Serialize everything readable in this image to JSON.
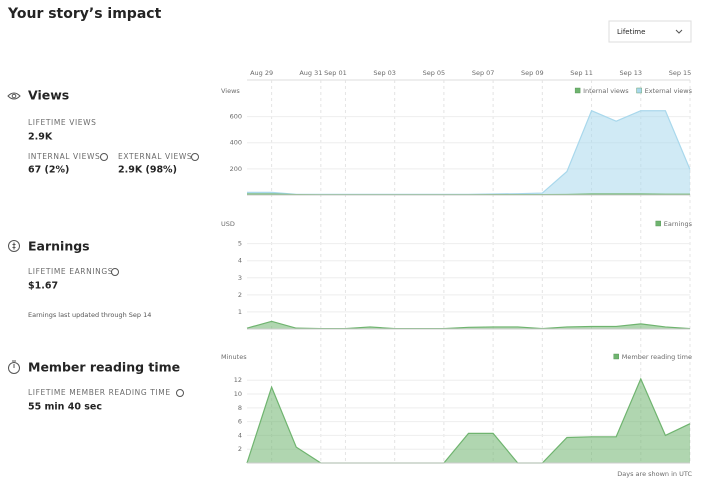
{
  "header": {
    "title": "Your story’s impact",
    "dropdown": "Lifetime"
  },
  "stats": {
    "views": {
      "title": "Views",
      "lifetime_label": "LIFETIME VIEWS",
      "lifetime_value": "2.9K",
      "internal_label": "INTERNAL VIEWS",
      "internal_value": "67 (2%)",
      "external_label": "EXTERNAL VIEWS",
      "external_value": "2.9K (98%)"
    },
    "earnings": {
      "title": "Earnings",
      "lifetime_label": "LIFETIME EARNINGS",
      "lifetime_value": "$1.67",
      "note": "Earnings last updated through Sep 14"
    },
    "reading": {
      "title": "Member reading time",
      "lifetime_label": "LIFETIME MEMBER READING TIME",
      "lifetime_value": "55 min 40 sec"
    }
  },
  "chart_data": [
    {
      "type": "area",
      "y_label": "Views",
      "legend": "top-right",
      "grid": true,
      "categories": [
        null,
        "Aug 29",
        null,
        "Aug 31",
        "Sep 01",
        null,
        "Sep 03",
        null,
        "Sep 05",
        null,
        "Sep 07",
        null,
        "Sep 09",
        null,
        "Sep 11",
        null,
        "Sep 13",
        null,
        "Sep 15"
      ],
      "ylim": [
        0,
        750
      ],
      "yticks": [
        200,
        400,
        600
      ],
      "series": [
        {
          "name": "Internal views",
          "color": "#6fb46f",
          "values": [
            8,
            8,
            3,
            2,
            2,
            2,
            2,
            2,
            2,
            2,
            3,
            3,
            3,
            4,
            8,
            8,
            8,
            6,
            6
          ]
        },
        {
          "name": "External views",
          "color": "#a9d8ec",
          "values": [
            20,
            20,
            5,
            5,
            5,
            5,
            5,
            5,
            5,
            5,
            8,
            10,
            15,
            180,
            645,
            565,
            645,
            645,
            195
          ]
        }
      ]
    },
    {
      "type": "area",
      "y_label": "USD",
      "legend": "top-right",
      "grid": true,
      "ylim": [
        0,
        5.8
      ],
      "yticks": [
        1,
        2,
        3,
        4,
        5
      ],
      "series": [
        {
          "name": "Earnings",
          "color": "#6fb46f",
          "values": [
            0.05,
            0.45,
            0.05,
            0.02,
            0.02,
            0.12,
            0.02,
            0.02,
            0.02,
            0.1,
            0.12,
            0.12,
            0.02,
            0.12,
            0.15,
            0.15,
            0.3,
            0.12,
            0.02
          ]
        }
      ]
    },
    {
      "type": "area",
      "y_label": "Minutes",
      "legend": "top-right",
      "grid": true,
      "ylim": [
        0,
        14.5
      ],
      "yticks": [
        2,
        4,
        6,
        8,
        10,
        12
      ],
      "series": [
        {
          "name": "Member reading time",
          "color": "#6fb46f",
          "values": [
            0,
            11,
            2.3,
            0,
            0,
            0,
            0,
            0,
            0,
            4.3,
            4.3,
            0,
            0,
            3.7,
            3.8,
            3.8,
            12.2,
            4,
            5.7
          ]
        }
      ]
    }
  ],
  "footnote": "Days are shown in UTC"
}
